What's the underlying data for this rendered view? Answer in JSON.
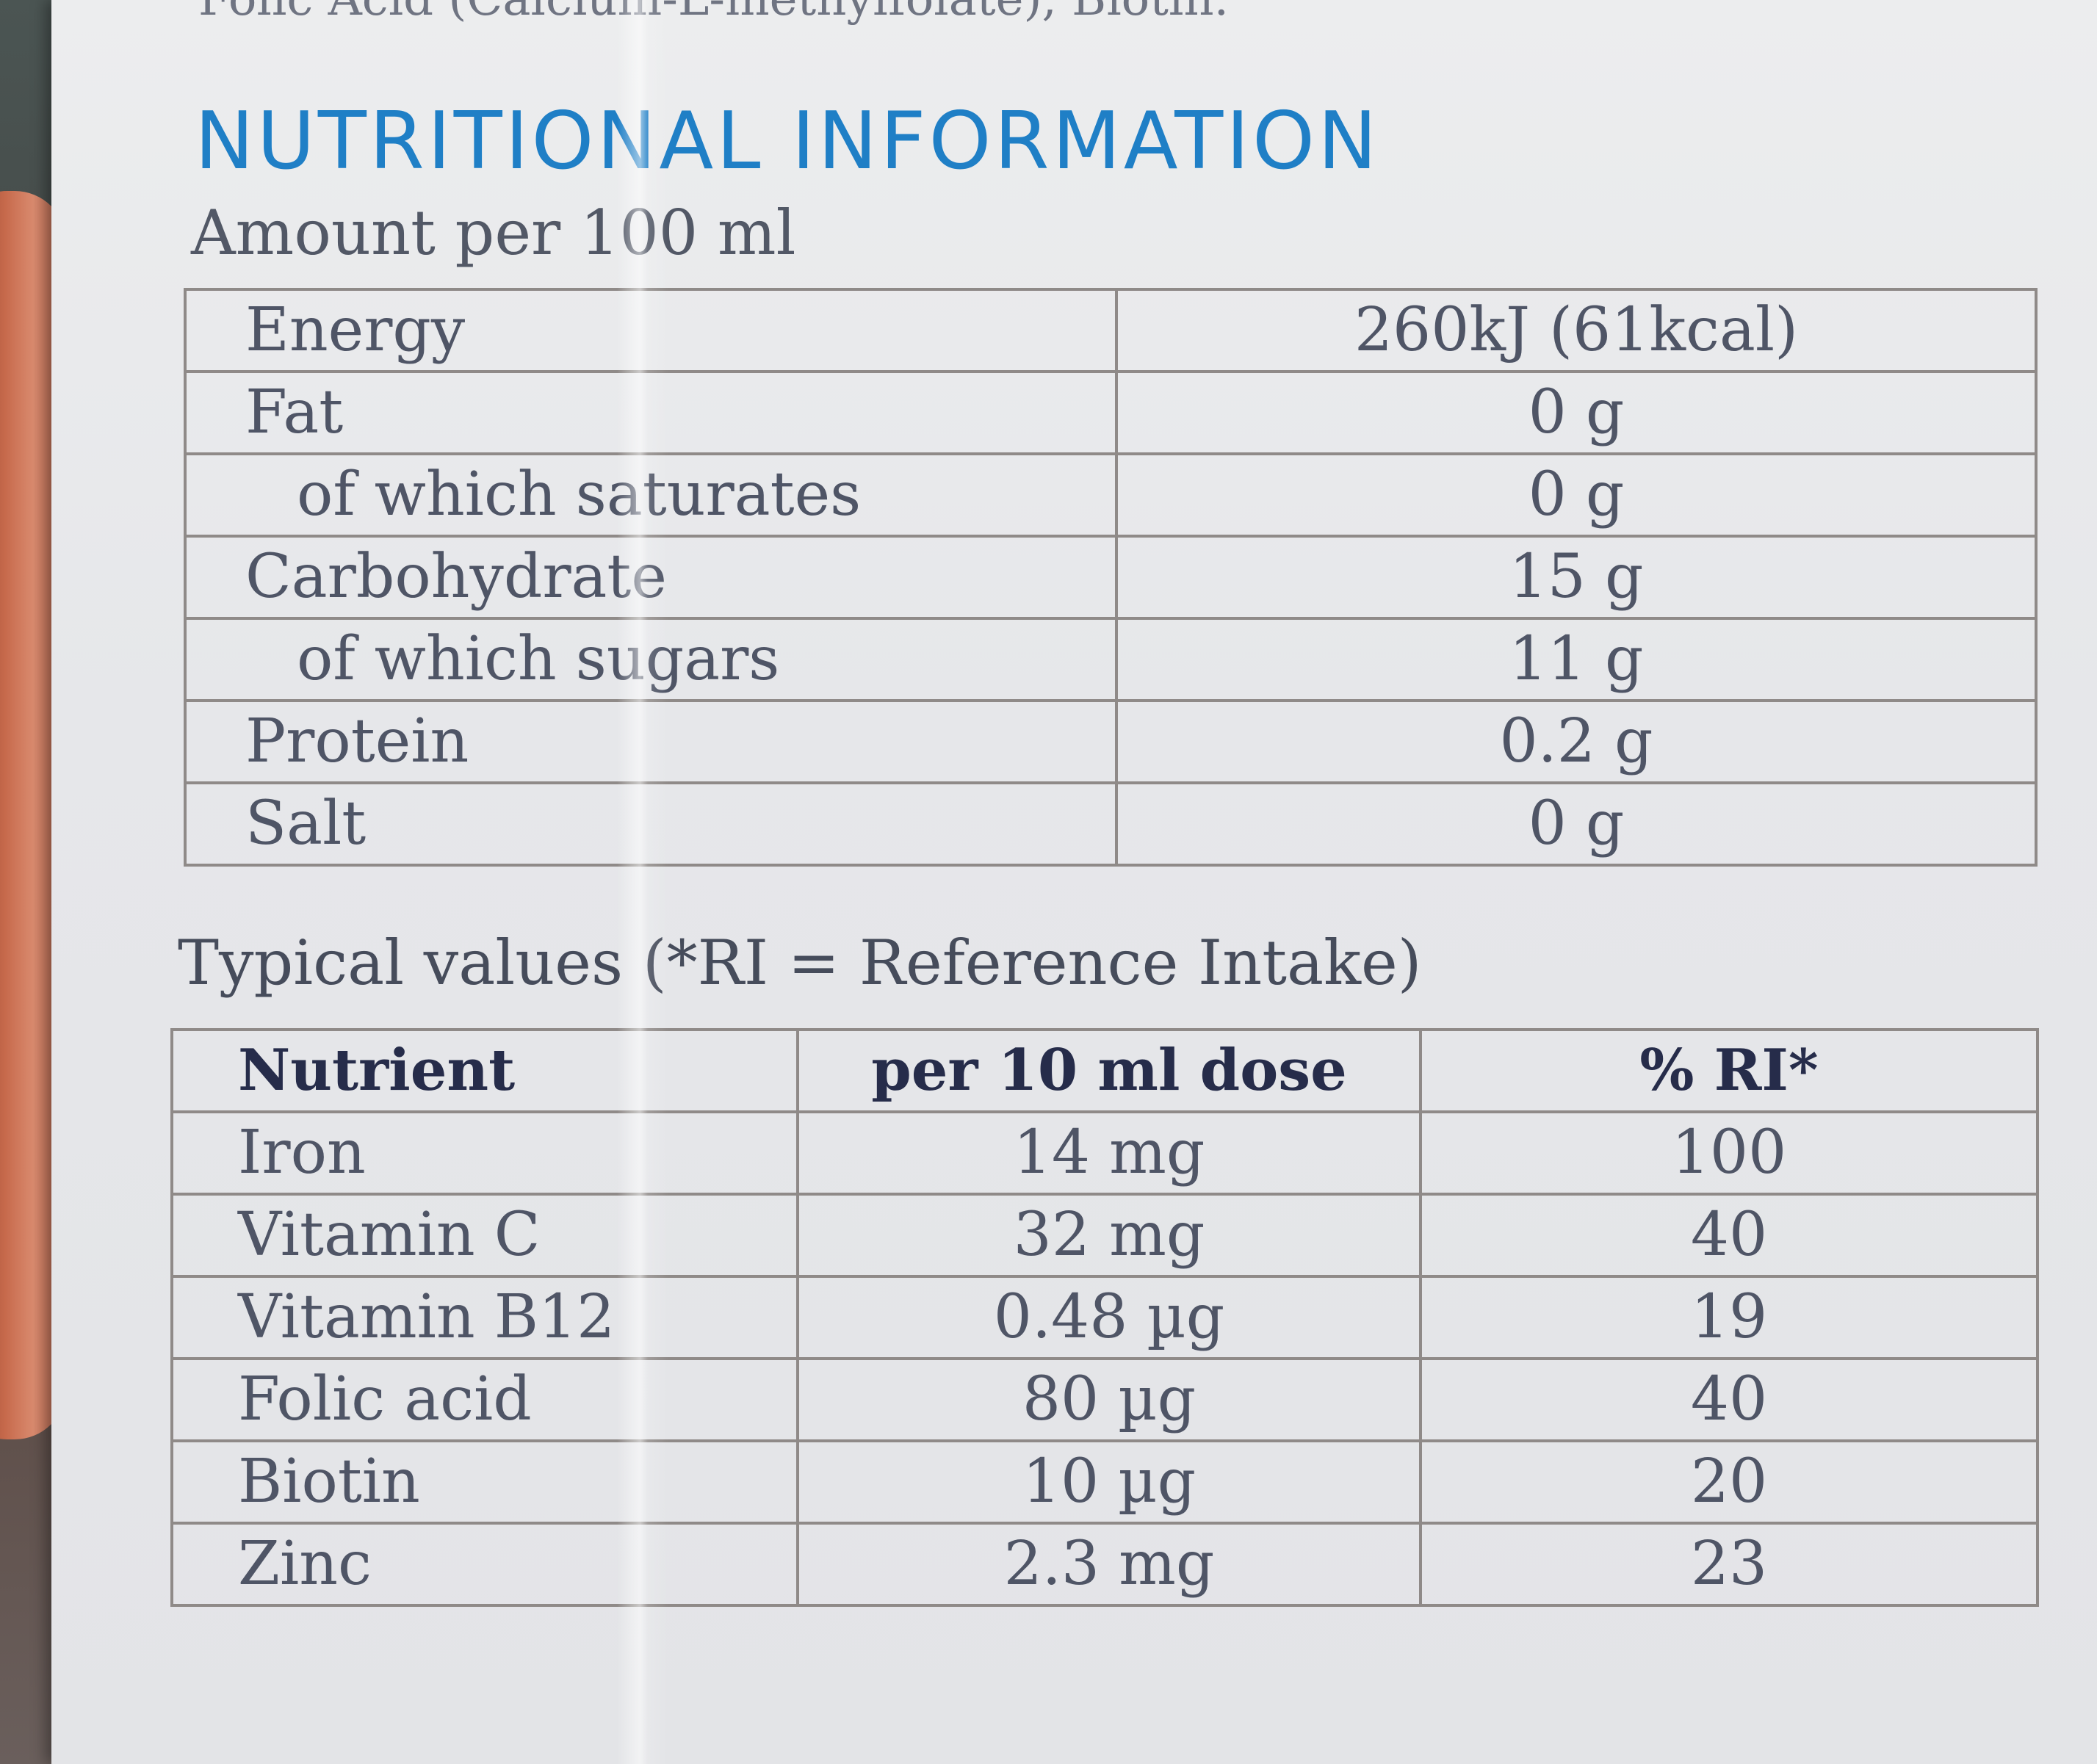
{
  "top_line": "Folic Acid (Calcium-L-methylfolate), Biotin.",
  "heading": "NUTRITIONAL INFORMATION",
  "amount_label": "Amount per 100 ml",
  "nutrition": {
    "rows": [
      {
        "label": "Energy",
        "value": "260kJ (61kcal)"
      },
      {
        "label": "Fat",
        "value": "0 g"
      },
      {
        "label": "of which saturates",
        "value": "0 g"
      },
      {
        "label": "Carbohydrate",
        "value": "15 g"
      },
      {
        "label": "of which sugars",
        "value": "11 g"
      },
      {
        "label": "Protein",
        "value": "0.2 g"
      },
      {
        "label": "Salt",
        "value": "0 g"
      }
    ]
  },
  "typical_label": "Typical values (*RI = Reference Intake)",
  "vitamins": {
    "headers": [
      "Nutrient",
      "per 10 ml dose",
      "% RI*"
    ],
    "rows": [
      {
        "nutrient": "Iron",
        "dose": "14 mg",
        "ri": "100"
      },
      {
        "nutrient": "Vitamin C",
        "dose": "32 mg",
        "ri": "40"
      },
      {
        "nutrient": "Vitamin B12",
        "dose": "0.48 µg",
        "ri": "19"
      },
      {
        "nutrient": "Folic acid",
        "dose": "80 µg",
        "ri": "40"
      },
      {
        "nutrient": "Biotin",
        "dose": "10 µg",
        "ri": "20"
      },
      {
        "nutrient": "Zinc",
        "dose": "2.3 mg",
        "ri": "23"
      }
    ]
  },
  "colors": {
    "heading": "#1f7fc6",
    "text": "#4f5566",
    "header_text": "#262c4a",
    "carton": "#e6e7ea"
  }
}
